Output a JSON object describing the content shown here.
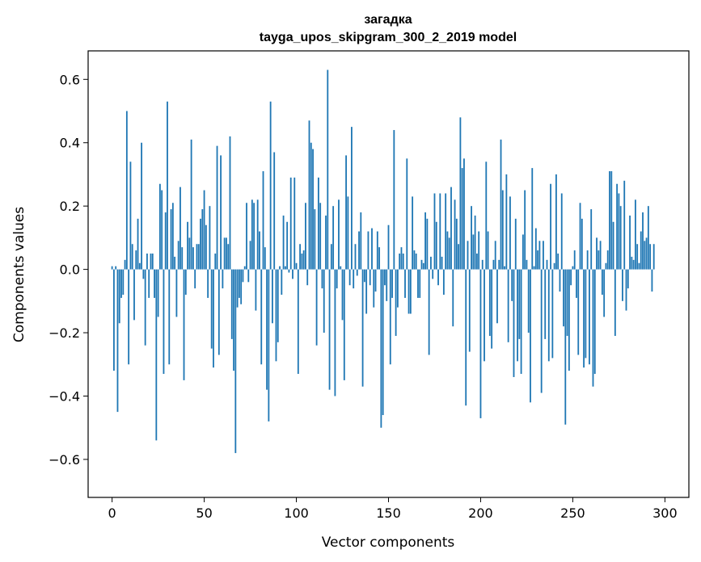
{
  "chart_data": {
    "type": "bar",
    "title": "загадка",
    "subtitle": "tayga_upos_skipgram_300_2_2019 model",
    "xlabel": "Vector components",
    "ylabel": "Components values",
    "xlim": [
      -13,
      313
    ],
    "ylim": [
      -0.72,
      0.69
    ],
    "xticks": [
      0,
      50,
      100,
      150,
      200,
      250,
      300
    ],
    "yticks": [
      -0.6,
      -0.4,
      -0.2,
      0.0,
      0.2,
      0.4,
      0.6
    ],
    "ytick_labels": [
      "−0.6",
      "−0.4",
      "−0.2",
      "0.0",
      "0.2",
      "0.4",
      "0.6"
    ],
    "bar_color": "#1f77b4",
    "x": "0..299",
    "values": [
      0.01,
      -0.32,
      0.01,
      -0.45,
      -0.17,
      -0.09,
      -0.08,
      0.03,
      0.5,
      -0.3,
      0.34,
      0.08,
      -0.16,
      0.06,
      0.16,
      0.02,
      0.4,
      -0.03,
      -0.24,
      0.05,
      -0.09,
      0.05,
      0.05,
      -0.09,
      -0.54,
      -0.15,
      0.27,
      0.25,
      -0.33,
      0.18,
      0.53,
      -0.3,
      0.19,
      0.21,
      0.04,
      -0.15,
      0.09,
      0.26,
      0.07,
      -0.35,
      -0.08,
      0.15,
      0.1,
      0.41,
      0.07,
      -0.06,
      0.08,
      0.08,
      0.16,
      0.19,
      0.25,
      0.14,
      -0.09,
      0.2,
      -0.25,
      -0.31,
      0.05,
      0.39,
      -0.27,
      0.36,
      -0.06,
      0.1,
      0.1,
      0.08,
      0.42,
      -0.22,
      -0.32,
      -0.58,
      -0.12,
      -0.09,
      -0.11,
      -0.04,
      0.01,
      0.21,
      -0.04,
      0.09,
      0.22,
      0.21,
      -0.13,
      0.22,
      0.12,
      -0.3,
      0.31,
      0.07,
      -0.38,
      -0.48,
      0.53,
      -0.17,
      0.37,
      -0.29,
      -0.23,
      0.01,
      -0.08,
      0.17,
      0.01,
      0.15,
      -0.01,
      0.29,
      -0.03,
      0.29,
      0.02,
      -0.33,
      0.08,
      0.05,
      0.06,
      0.21,
      -0.05,
      0.47,
      0.4,
      0.38,
      0.19,
      -0.24,
      0.29,
      0.21,
      -0.06,
      -0.2,
      0.17,
      0.63,
      -0.38,
      0.08,
      0.2,
      -0.4,
      -0.06,
      0.22,
      0.01,
      -0.16,
      -0.35,
      0.36,
      0.23,
      -0.05,
      0.45,
      -0.06,
      0.08,
      -0.02,
      0.12,
      0.18,
      -0.37,
      -0.04,
      -0.14,
      0.12,
      -0.05,
      0.13,
      -0.12,
      -0.07,
      0.12,
      0.07,
      -0.5,
      -0.46,
      -0.05,
      -0.1,
      0.14,
      -0.3,
      -0.09,
      0.44,
      -0.21,
      -0.12,
      0.05,
      0.07,
      0.05,
      -0.09,
      0.35,
      -0.14,
      -0.14,
      0.23,
      0.06,
      0.05,
      -0.09,
      -0.09,
      0.03,
      0.02,
      0.18,
      0.16,
      -0.27,
      0.04,
      -0.03,
      0.24,
      0.15,
      -0.05,
      0.24,
      0.04,
      -0.08,
      0.24,
      0.12,
      0.1,
      0.26,
      -0.18,
      0.22,
      0.16,
      0.08,
      0.48,
      0.32,
      0.35,
      -0.43,
      0.09,
      -0.26,
      0.2,
      0.11,
      0.17,
      0.05,
      0.12,
      -0.47,
      0.03,
      -0.29,
      0.34,
      0.12,
      -0.21,
      -0.25,
      0.03,
      0.09,
      -0.17,
      0.03,
      0.41,
      0.25,
      0.01,
      0.3,
      -0.23,
      0.23,
      -0.1,
      -0.34,
      0.16,
      -0.29,
      -0.22,
      -0.33,
      0.11,
      0.25,
      0.03,
      -0.2,
      -0.42,
      0.32,
      0.01,
      0.13,
      0.06,
      0.09,
      -0.39,
      0.09,
      -0.22,
      0.03,
      -0.29,
      0.27,
      -0.28,
      0.02,
      0.3,
      0.05,
      -0.07,
      0.24,
      -0.18,
      -0.49,
      -0.21,
      -0.32,
      -0.05,
      0.01,
      0.06,
      -0.09,
      -0.27,
      0.21,
      0.16,
      -0.31,
      -0.28,
      0.06,
      -0.3,
      0.19,
      -0.37,
      -0.33,
      0.1,
      0.06,
      0.09,
      -0.08,
      -0.15,
      0.02,
      0.06,
      0.31,
      0.31,
      0.15,
      -0.21,
      0.27,
      0.24,
      0.2,
      -0.1,
      0.28,
      -0.13,
      -0.06,
      0.17,
      0.04,
      0.03,
      0.22,
      0.08,
      0.02,
      0.12,
      0.18,
      0.09,
      0.1,
      0.2,
      0.08,
      -0.07,
      0.08
    ]
  }
}
